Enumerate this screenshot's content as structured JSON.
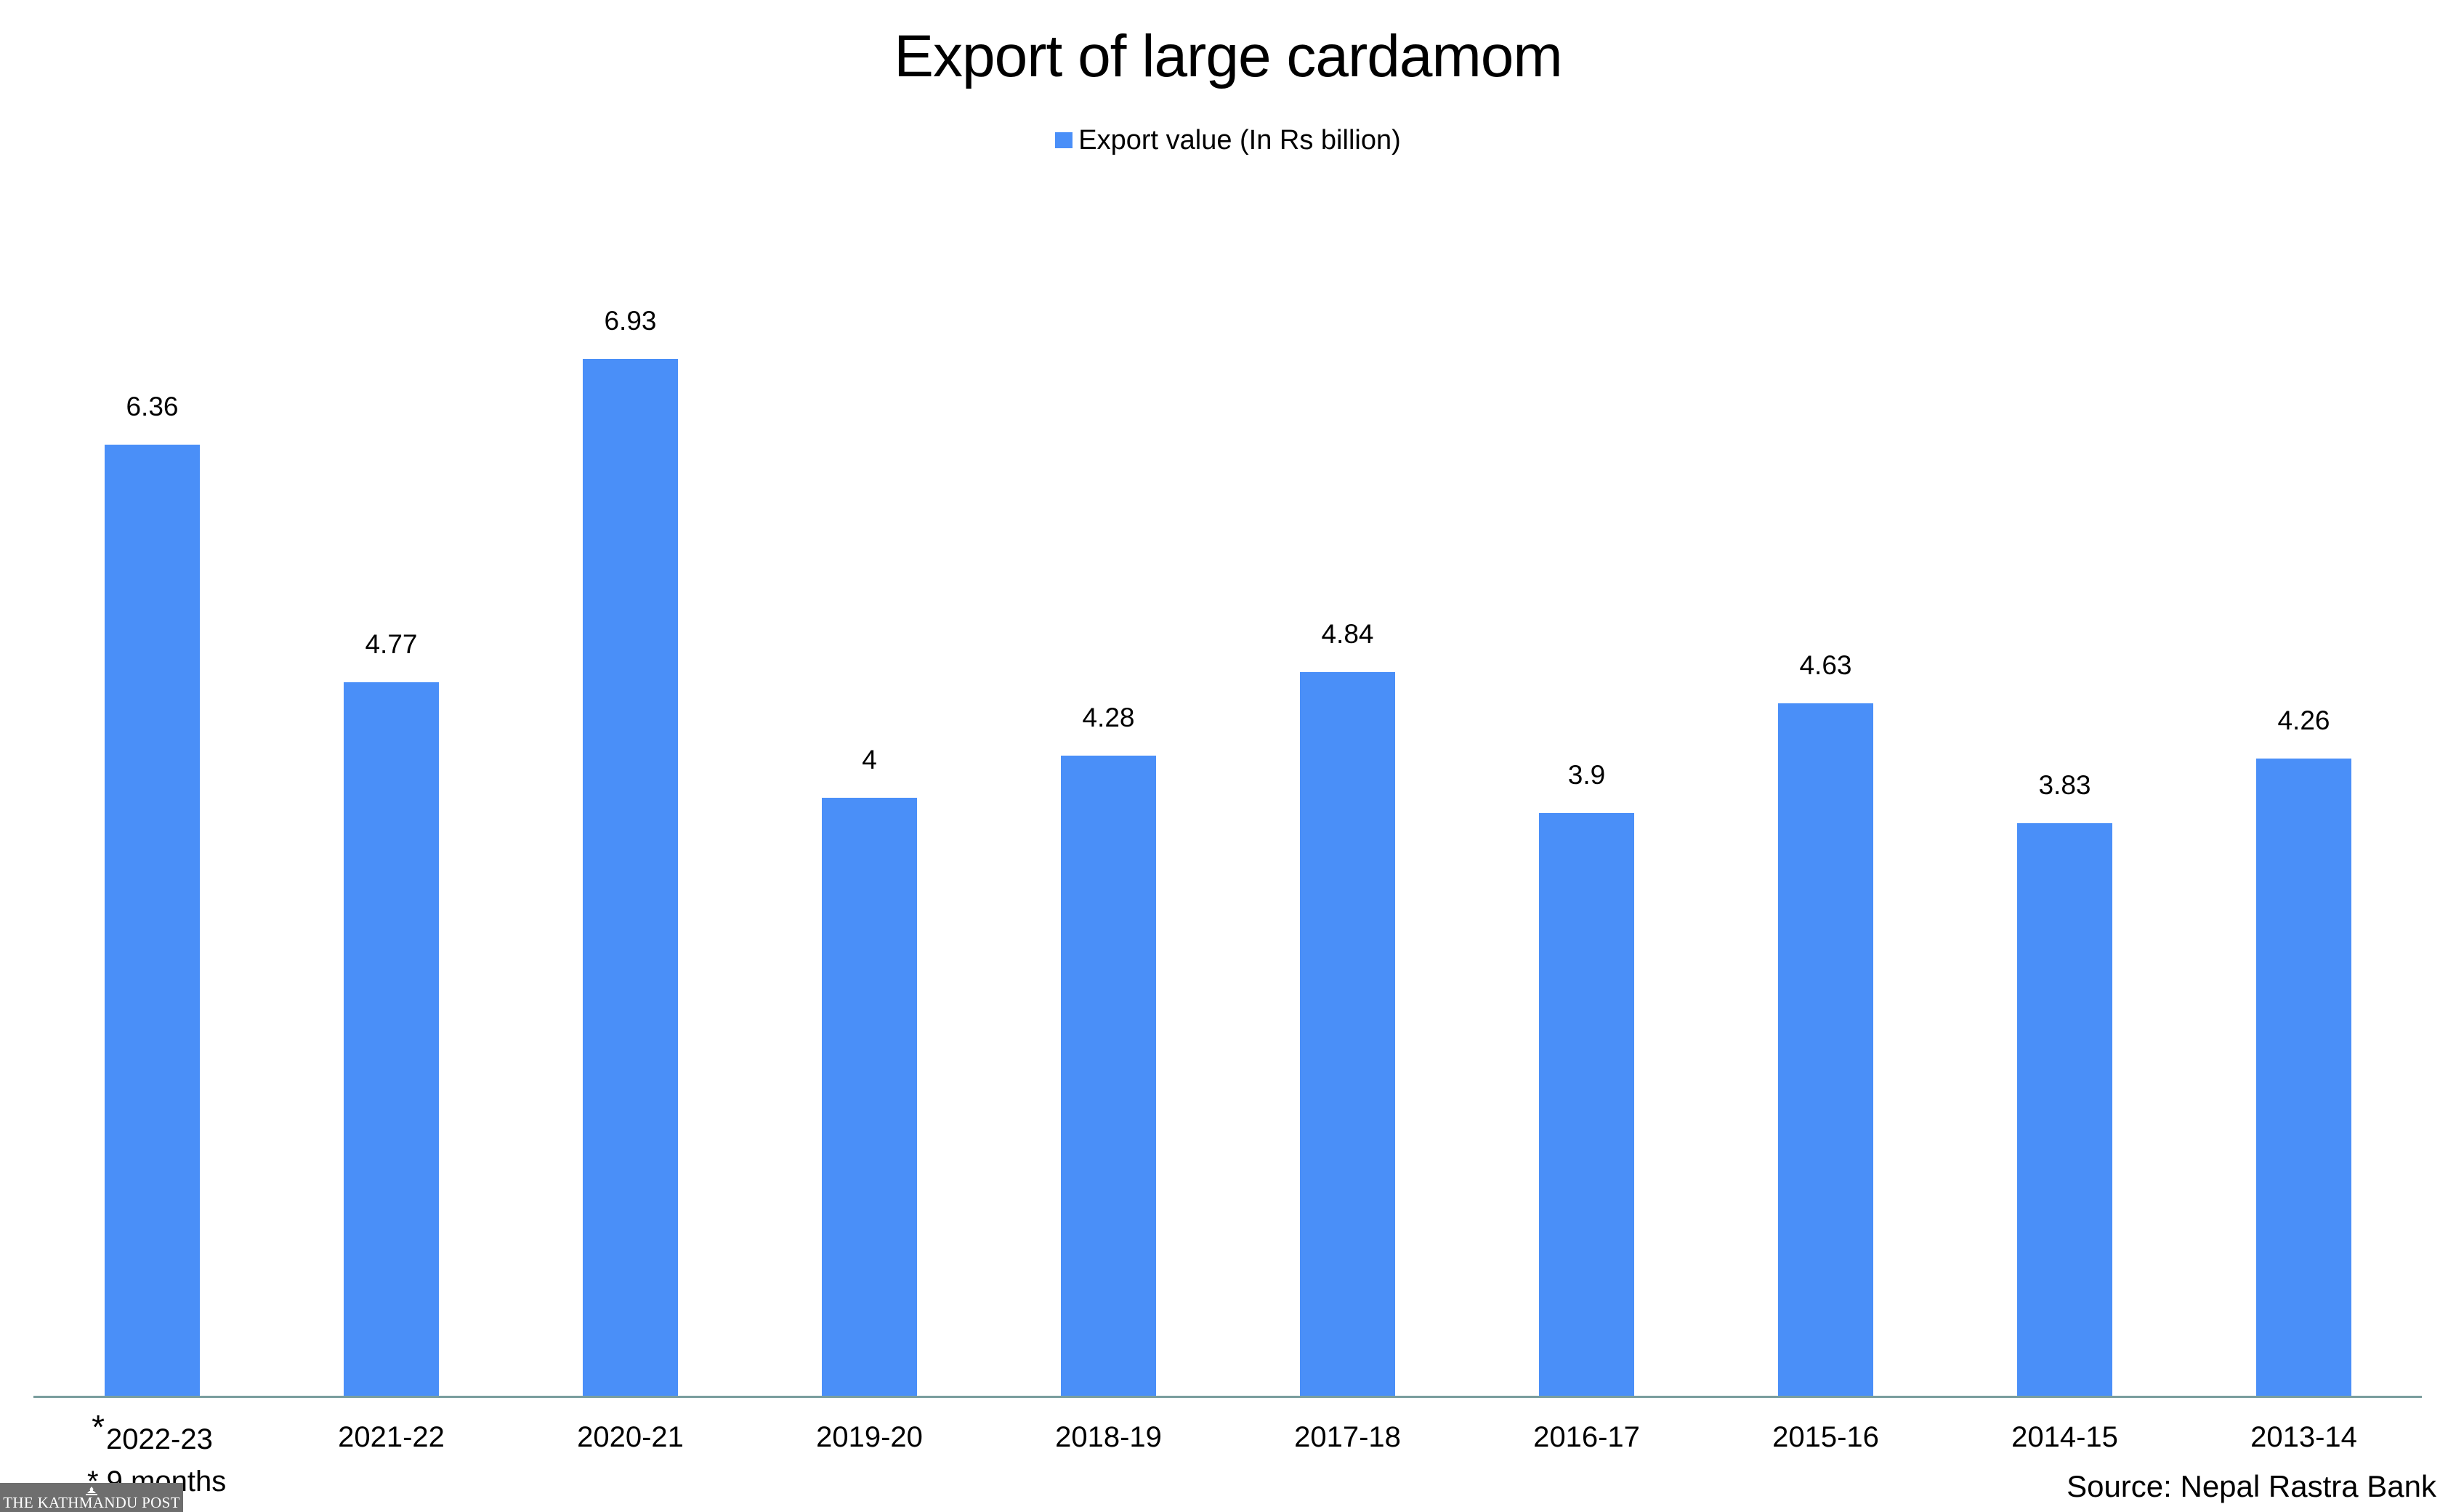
{
  "title": "Export of large cardamom",
  "legend": {
    "label": "Export value (In Rs billion)",
    "color": "#4a8ff8"
  },
  "footnote": "* 9 months",
  "source": "Source: Nepal Rastra Bank",
  "logo": {
    "text": "THE KATHMANDU POST",
    "icon": "pagoda-icon"
  },
  "axis_color": "#7a9e9e",
  "chart_data": {
    "type": "bar",
    "title": "Export of large cardamom",
    "xlabel": "",
    "ylabel": "",
    "legend": [
      "Export value (In Rs billion)"
    ],
    "legend_position": "top",
    "grid": false,
    "ylim": [
      0,
      7.5
    ],
    "categories": [
      "2022-23",
      "2021-22",
      "2020-21",
      "2019-20",
      "2018-19",
      "2017-18",
      "2016-17",
      "2015-16",
      "2014-15",
      "2013-14"
    ],
    "category_markers": [
      "*",
      "",
      "",
      "",
      "",
      "",
      "",
      "",
      "",
      ""
    ],
    "series": [
      {
        "name": "Export value (In Rs billion)",
        "color": "#4a8ff8",
        "values": [
          6.36,
          4.77,
          6.93,
          4,
          4.28,
          4.84,
          3.9,
          4.63,
          3.83,
          4.26
        ],
        "labels": [
          "6.36",
          "4.77",
          "6.93",
          "4",
          "4.28",
          "4.84",
          "3.9",
          "4.63",
          "3.83",
          "4.26"
        ]
      }
    ],
    "annotations": [
      "* 9 months",
      "Source: Nepal Rastra Bank"
    ]
  }
}
